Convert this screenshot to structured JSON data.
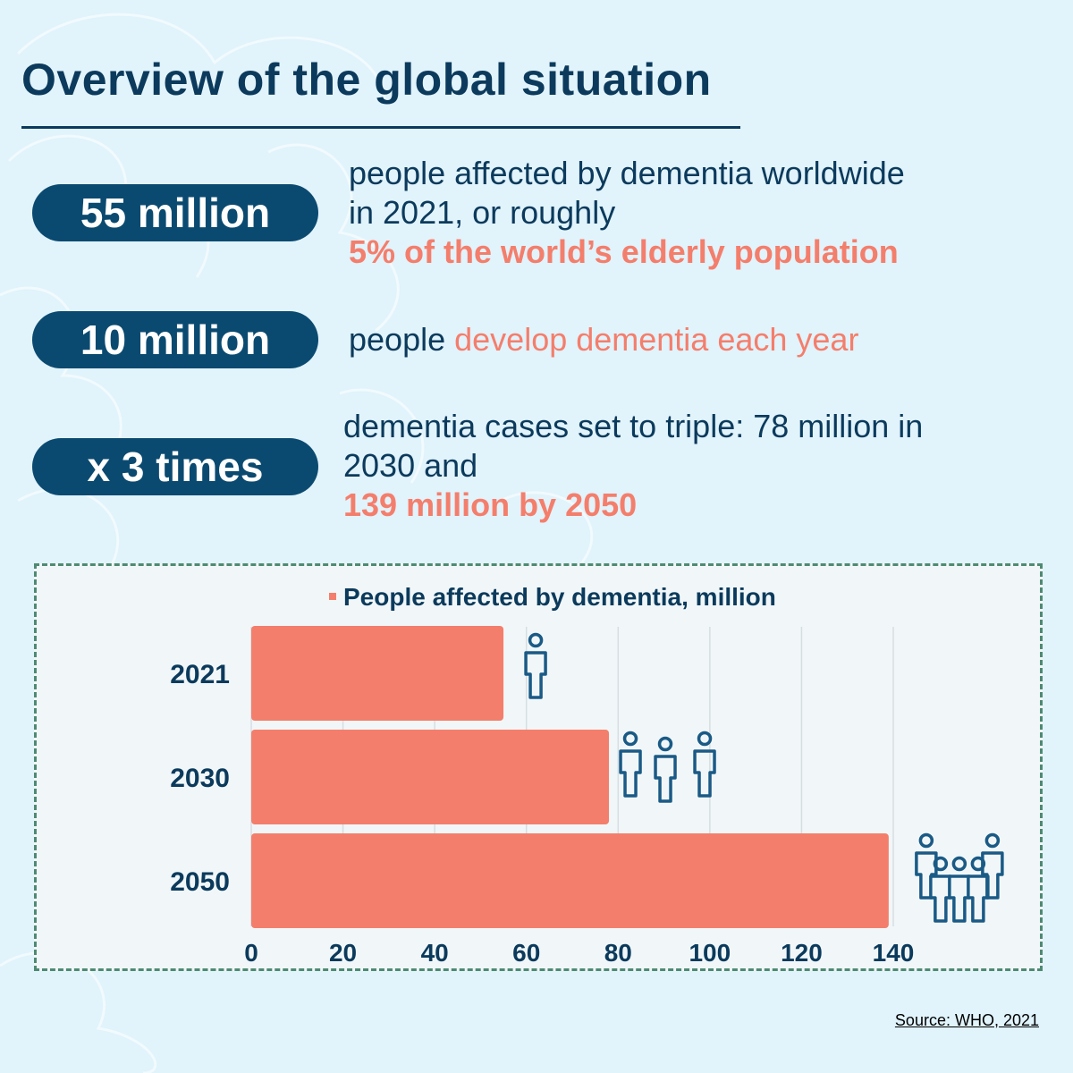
{
  "title": "Overview of the global situation",
  "stats": [
    {
      "badge": "55 million",
      "text_lines": [
        "people affected by dementia worldwide",
        "in 2021, or roughly"
      ],
      "highlight": "5% of the world’s elderly population"
    },
    {
      "badge": "10 million",
      "text": "people",
      "highlight": "develop dementia each year"
    },
    {
      "badge": "x 3 times",
      "text_lines": [
        "dementia cases set to triple: 78 million in",
        "2030 and"
      ],
      "highlight": "139 million by 2050"
    }
  ],
  "chart_data": {
    "type": "bar",
    "orientation": "horizontal",
    "legend": {
      "entries": [
        "People affected by dementia, million"
      ],
      "placement": "top-center"
    },
    "categories": [
      "2021",
      "2030",
      "2050"
    ],
    "series": [
      {
        "name": "People affected by dementia, million",
        "values": [
          55,
          78,
          139
        ]
      }
    ],
    "xlim": [
      0,
      140
    ],
    "x_ticks": [
      0,
      20,
      40,
      60,
      80,
      100,
      120,
      140
    ],
    "grid": true,
    "people_icons": [
      1,
      3,
      5
    ]
  },
  "source": "Source: WHO, 2021",
  "colors": {
    "navy": "#0b3a5c",
    "pill": "#0b4a70",
    "accent": "#f47e6c",
    "bar": "#f47e6c",
    "background": "#e1f3fb",
    "chart_border": "#4e8a72"
  }
}
